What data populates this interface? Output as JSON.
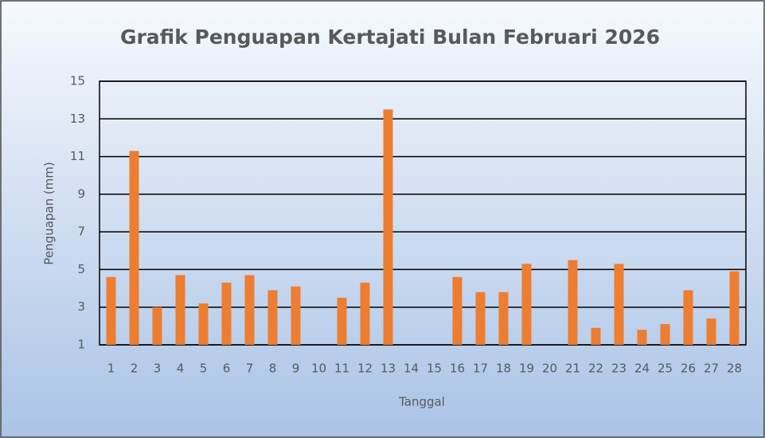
{
  "chart_data": {
    "type": "bar",
    "title": "Grafik Penguapan Kertajati Bulan Februari 2026",
    "x_label": "Tanggal",
    "y_label": "Penguapan (mm)",
    "categories": [
      "1",
      "2",
      "3",
      "4",
      "5",
      "6",
      "7",
      "8",
      "9",
      "10",
      "11",
      "12",
      "13",
      "14",
      "15",
      "16",
      "17",
      "18",
      "19",
      "20",
      "21",
      "22",
      "23",
      "24",
      "25",
      "26",
      "27",
      "28"
    ],
    "values": [
      4.6,
      11.3,
      3.0,
      4.7,
      3.2,
      4.3,
      4.7,
      3.9,
      4.1,
      null,
      3.5,
      4.3,
      13.5,
      null,
      null,
      4.6,
      3.8,
      3.8,
      5.3,
      null,
      5.5,
      1.9,
      5.3,
      1.8,
      2.1,
      3.9,
      2.4,
      4.9
    ],
    "color": "#ed7d31",
    "ylim": [
      1,
      15
    ],
    "yticks": [
      1,
      3,
      5,
      7,
      9,
      11,
      13,
      15
    ],
    "grid": true
  }
}
